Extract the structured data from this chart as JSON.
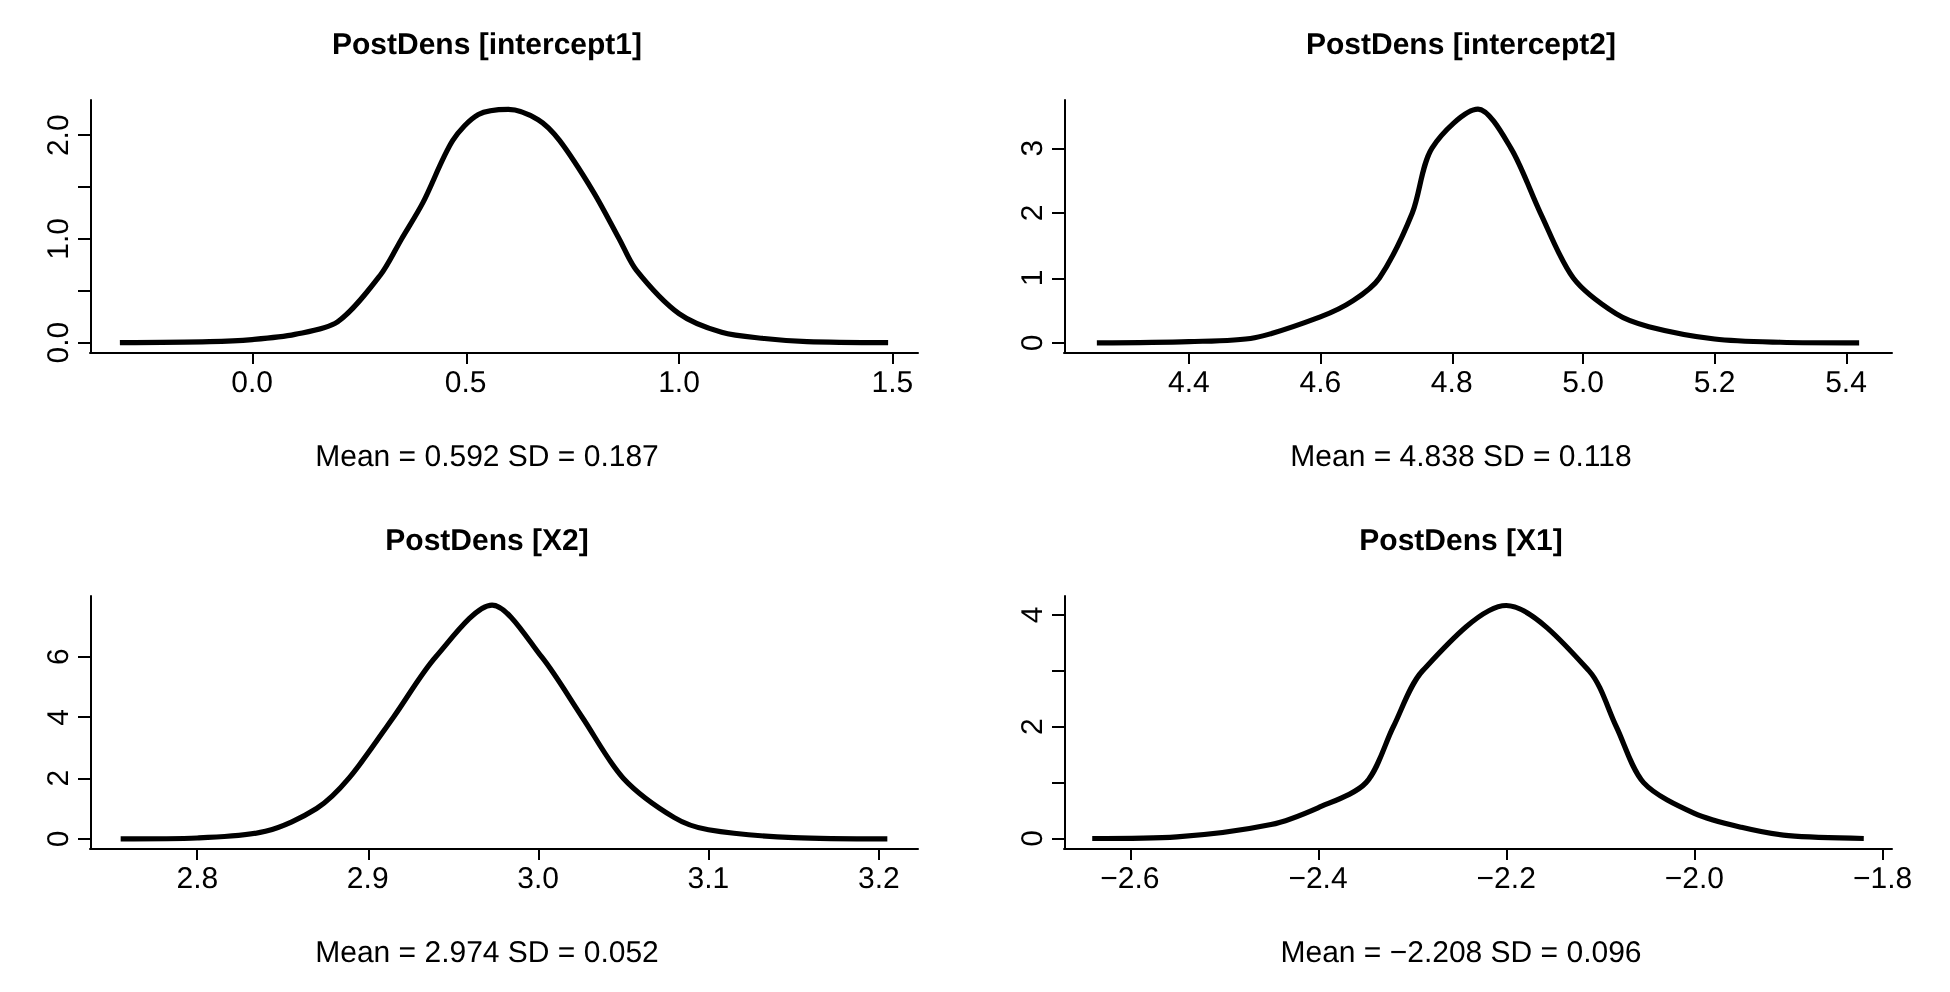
{
  "chart_data": [
    {
      "type": "line",
      "title": "PostDens [intercept1]",
      "marker": "none",
      "annotations": [
        "Mean = 0.592 SD = 0.187"
      ],
      "xlim": [
        -0.38,
        1.56
      ],
      "ylim": [
        -0.09,
        2.34
      ],
      "xticks": [
        {
          "value": 0,
          "label": "0.0"
        },
        0.5,
        {
          "value": 1,
          "label": "1.0"
        },
        1.5
      ],
      "yticks": [
        {
          "value": 0,
          "label": "0.0"
        },
        {
          "value": 0.5,
          "label": null
        },
        {
          "value": 1,
          "label": "1.0"
        },
        {
          "value": 1.5,
          "label": null
        },
        {
          "value": 2,
          "label": "2.0"
        }
      ],
      "series": [
        {
          "color": "#000000",
          "x": [
            -0.31,
            -0.1,
            0.0,
            0.1,
            0.2,
            0.3,
            0.35,
            0.4,
            0.47,
            0.53,
            0.6,
            0.67,
            0.72,
            0.8,
            0.86,
            0.9,
            1.0,
            1.1,
            1.2,
            1.3,
            1.49
          ],
          "values": [
            0,
            0.01,
            0.03,
            0.08,
            0.2,
            0.65,
            1.0,
            1.35,
            1.95,
            2.2,
            2.25,
            2.15,
            1.95,
            1.45,
            1.0,
            0.7,
            0.28,
            0.1,
            0.04,
            0.01,
            0
          ]
        }
      ]
    },
    {
      "type": "line",
      "title": "PostDens [intercept2]",
      "marker": "none",
      "annotations": [
        "Mean = 4.838 SD = 0.118"
      ],
      "xlim": [
        4.21,
        5.47
      ],
      "ylim": [
        -0.14,
        3.74
      ],
      "xticks": [
        4.4,
        4.6,
        4.8,
        {
          "value": 5,
          "label": "5.0"
        },
        5.2,
        5.4
      ],
      "yticks": [
        0,
        1,
        2,
        3
      ],
      "series": [
        {
          "color": "#000000",
          "x": [
            4.26,
            4.4,
            4.5,
            4.6,
            4.65,
            4.69,
            4.74,
            4.77,
            4.84,
            4.89,
            4.935,
            4.985,
            5.05,
            5.1,
            5.2,
            5.3,
            5.42
          ],
          "values": [
            0,
            0.02,
            0.08,
            0.4,
            0.65,
            1.0,
            2.0,
            3.0,
            3.6,
            3.0,
            2.0,
            1.0,
            0.45,
            0.25,
            0.06,
            0.01,
            0
          ]
        }
      ]
    },
    {
      "type": "line",
      "title": "PostDens [X2]",
      "marker": "none",
      "annotations": [
        "Mean = 2.974 SD = 0.052"
      ],
      "xlim": [
        2.737,
        3.223
      ],
      "ylim": [
        -0.3,
        8.0
      ],
      "xticks": [
        2.8,
        2.9,
        {
          "value": 3,
          "label": "3.0"
        },
        3.1,
        3.2
      ],
      "yticks": [
        0,
        2,
        4,
        6
      ],
      "series": [
        {
          "color": "#000000",
          "x": [
            2.755,
            2.8,
            2.84,
            2.87,
            2.889,
            2.915,
            2.94,
            2.973,
            3.002,
            3.026,
            3.05,
            3.08,
            3.1,
            3.15,
            3.205
          ],
          "values": [
            0,
            0.03,
            0.25,
            1.0,
            2.0,
            4.0,
            6.0,
            7.7,
            6.0,
            4.0,
            2.0,
            0.7,
            0.3,
            0.04,
            0
          ]
        }
      ]
    },
    {
      "type": "line",
      "title": "PostDens [X1]",
      "marker": "none",
      "annotations": [
        "Mean = −2.208 SD = 0.096"
      ],
      "xlim": [
        -2.67,
        -1.79
      ],
      "ylim": [
        -0.17,
        4.34
      ],
      "xticks": [
        {
          "value": -2.6,
          "label": "−2.6"
        },
        {
          "value": -2.4,
          "label": "−2.4"
        },
        {
          "value": -2.2,
          "label": "−2.2"
        },
        {
          "value": -2.0,
          "label": "−2.0"
        },
        {
          "value": -1.8,
          "label": "−1.8"
        }
      ],
      "yticks": [
        0,
        {
          "value": 1,
          "label": null
        },
        2,
        {
          "value": 3,
          "label": null
        },
        4
      ],
      "series": [
        {
          "color": "#000000",
          "x": [
            -2.64,
            -2.55,
            -2.45,
            -2.4,
            -2.349,
            -2.32,
            -2.289,
            -2.2,
            -2.112,
            -2.083,
            -2.054,
            -2.0,
            -1.95,
            -1.9,
            -1.82
          ],
          "values": [
            0,
            0.03,
            0.25,
            0.55,
            1.0,
            2.0,
            3.0,
            4.17,
            3.0,
            2.0,
            1.0,
            0.45,
            0.2,
            0.05,
            0
          ]
        }
      ]
    }
  ]
}
